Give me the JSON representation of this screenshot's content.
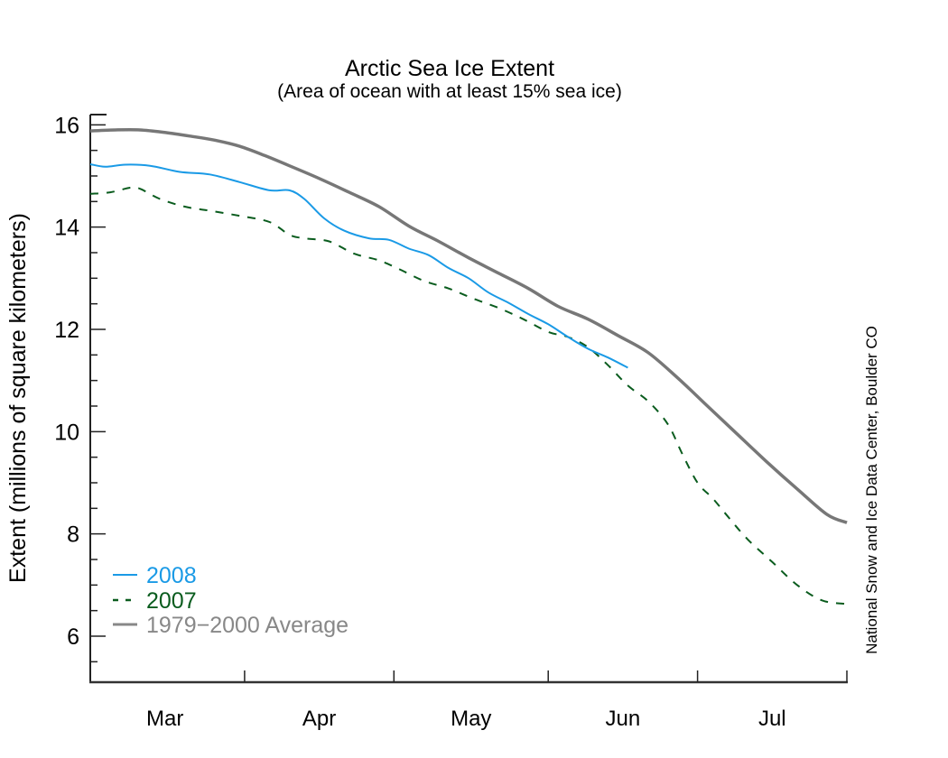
{
  "chart_data": {
    "type": "line",
    "title": "Arctic Sea Ice Extent",
    "subtitle": "(Area of ocean with at least 15% sea ice)",
    "xlabel": "",
    "ylabel": "Extent (millions of square kilometers)",
    "credit": "National Snow and Ice Data Center, Boulder CO",
    "x_unit": "days since Mar 1",
    "xlim": [
      0,
      152
    ],
    "ylim": [
      5.1,
      16.2
    ],
    "yticks_major": [
      6,
      8,
      10,
      12,
      14,
      16
    ],
    "yticks_major_labels": [
      "6",
      "8",
      "10",
      "12",
      "14",
      "16"
    ],
    "yticks_minor_step": 0.5,
    "xticks": [
      31,
      61,
      92,
      122,
      152
    ],
    "month_labels": [
      {
        "label": "Mar",
        "center": 15
      },
      {
        "label": "Apr",
        "center": 46
      },
      {
        "label": "May",
        "center": 76.5
      },
      {
        "label": "Jun",
        "center": 107
      },
      {
        "label": "Jul",
        "center": 137
      }
    ],
    "grid": false,
    "legend_position": "bottom-left",
    "series": [
      {
        "name": "2008",
        "color": "#1a9ae6",
        "style": "solid",
        "x": [
          0,
          3,
          7,
          12,
          18,
          24,
          30,
          36,
          40,
          43,
          47,
          51,
          56,
          60,
          64,
          68,
          72,
          76,
          80,
          84,
          88,
          92,
          96,
          100,
          104,
          108
        ],
        "y": [
          15.23,
          15.18,
          15.22,
          15.2,
          15.08,
          15.03,
          14.88,
          14.72,
          14.72,
          14.55,
          14.17,
          13.93,
          13.78,
          13.75,
          13.58,
          13.45,
          13.2,
          13.0,
          12.72,
          12.52,
          12.3,
          12.1,
          11.85,
          11.62,
          11.45,
          11.25
        ]
      },
      {
        "name": "2007",
        "color": "#0a5c1e",
        "style": "dashed",
        "x": [
          0,
          4,
          8,
          10,
          14,
          19,
          24,
          30,
          36,
          40,
          43,
          48,
          53,
          58,
          62,
          67,
          72,
          77,
          82,
          87,
          92,
          96,
          100,
          104,
          108,
          112,
          116,
          119,
          122,
          125,
          128,
          132,
          137,
          142,
          147,
          152
        ],
        "y": [
          14.65,
          14.68,
          14.77,
          14.75,
          14.55,
          14.4,
          14.32,
          14.22,
          14.1,
          13.85,
          13.78,
          13.72,
          13.48,
          13.35,
          13.18,
          12.95,
          12.8,
          12.6,
          12.42,
          12.2,
          11.95,
          11.85,
          11.65,
          11.3,
          10.9,
          10.6,
          10.15,
          9.55,
          9.0,
          8.7,
          8.35,
          7.9,
          7.45,
          7.0,
          6.7,
          6.63
        ]
      },
      {
        "name": "1979−2000 Average",
        "color": "#777777",
        "style": "solid",
        "x": [
          0,
          5,
          10,
          15,
          20,
          25,
          30,
          35,
          40,
          46,
          52,
          58,
          64,
          70,
          76,
          82,
          88,
          94,
          100,
          106,
          112,
          118,
          124,
          130,
          136,
          142,
          148,
          152
        ],
        "y": [
          15.88,
          15.9,
          15.9,
          15.85,
          15.78,
          15.7,
          15.58,
          15.4,
          15.2,
          14.95,
          14.68,
          14.4,
          14.02,
          13.72,
          13.4,
          13.1,
          12.8,
          12.45,
          12.2,
          11.88,
          11.55,
          11.05,
          10.5,
          9.95,
          9.4,
          8.88,
          8.38,
          8.22
        ]
      }
    ]
  }
}
